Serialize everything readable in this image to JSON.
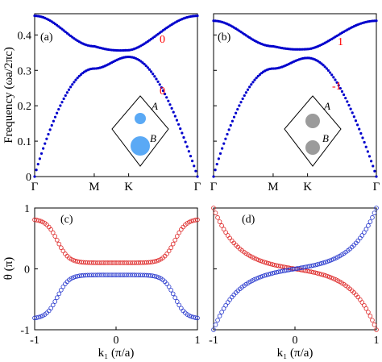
{
  "chart_data": [
    {
      "id": "a",
      "type": "scatter",
      "panel_label": "(a)",
      "ylabel": "Frequency (ωa/2πc)",
      "y_ticks": [
        "0",
        "0.1",
        "0.2",
        "0.3",
        "0.4"
      ],
      "x_ticks": [
        "Γ",
        "M",
        "K",
        "Γ"
      ],
      "ylim": [
        0,
        0.46
      ],
      "x_path": [
        "Γ",
        "M",
        "K",
        "Γ"
      ],
      "series": [
        {
          "values_at_path_points": [
            0.454,
            0.368,
            0.357,
            0.454
          ],
          "extra": {
            "K_minus_0.05": 0.36,
            "K_plus_0.15": 0.38
          }
        },
        {
          "values_at_path_points": [
            0.0,
            0.305,
            0.338,
            0.0
          ],
          "extra": {
            "K_minus_0.05": 0.34,
            "K_plus_0.1": 0.31
          }
        }
      ],
      "annotations": [
        {
          "text": "0",
          "color": "#ff0000",
          "band": "upper"
        },
        {
          "text": "0",
          "color": "#ff0000",
          "band": "lower"
        }
      ],
      "inset": {
        "label_A": "A",
        "label_B": "B",
        "atom_A_size": "small",
        "atom_B_size": "large",
        "color": "#5aa9f5"
      },
      "marker_color": "#0000cc"
    },
    {
      "id": "b",
      "type": "scatter",
      "panel_label": "(b)",
      "x_ticks": [
        "Γ",
        "M",
        "K",
        "Γ"
      ],
      "ylim": [
        0,
        0.46
      ],
      "series": [
        {
          "values_at_path_points": [
            0.44,
            0.368,
            0.36,
            0.44
          ]
        },
        {
          "values_at_path_points": [
            0.0,
            0.305,
            0.335,
            0.0
          ]
        }
      ],
      "annotations": [
        {
          "text": "1",
          "color": "#ff0000",
          "band": "upper"
        },
        {
          "text": "-1",
          "color": "#ff0000",
          "band": "lower"
        }
      ],
      "inset": {
        "label_A": "A",
        "label_B": "B",
        "atom_A_size": "equal",
        "atom_B_size": "equal",
        "color": "#9b9b9b"
      },
      "marker_color": "#0000cc"
    },
    {
      "id": "c",
      "type": "scatter",
      "panel_label": "(c)",
      "ylabel": "θ (π)",
      "xlabel": "k₁ (π/a)",
      "x_ticks": [
        "-1",
        "0",
        "1"
      ],
      "y_ticks": [
        "-1",
        "0",
        "1"
      ],
      "xlim": [
        -1,
        1
      ],
      "ylim": [
        -1,
        1
      ],
      "series": [
        {
          "color": "#dd2222",
          "shape": "open-circle",
          "center_value": 0.1,
          "edge_value": 0.82
        },
        {
          "color": "#2233cc",
          "shape": "open-circle",
          "center_value": -0.1,
          "edge_value": -0.82
        }
      ]
    },
    {
      "id": "d",
      "type": "scatter",
      "panel_label": "(d)",
      "xlabel": "k₁ (π/a)",
      "x_ticks": [
        "-1",
        "0",
        "1"
      ],
      "xlim": [
        -1,
        1
      ],
      "ylim": [
        -1,
        1
      ],
      "series": [
        {
          "color": "#dd2222",
          "shape": "open-circle",
          "start_value": 1.0,
          "end_value": -1.0
        },
        {
          "color": "#2233cc",
          "shape": "open-circle",
          "start_value": -1.0,
          "end_value": 1.0
        }
      ]
    }
  ]
}
